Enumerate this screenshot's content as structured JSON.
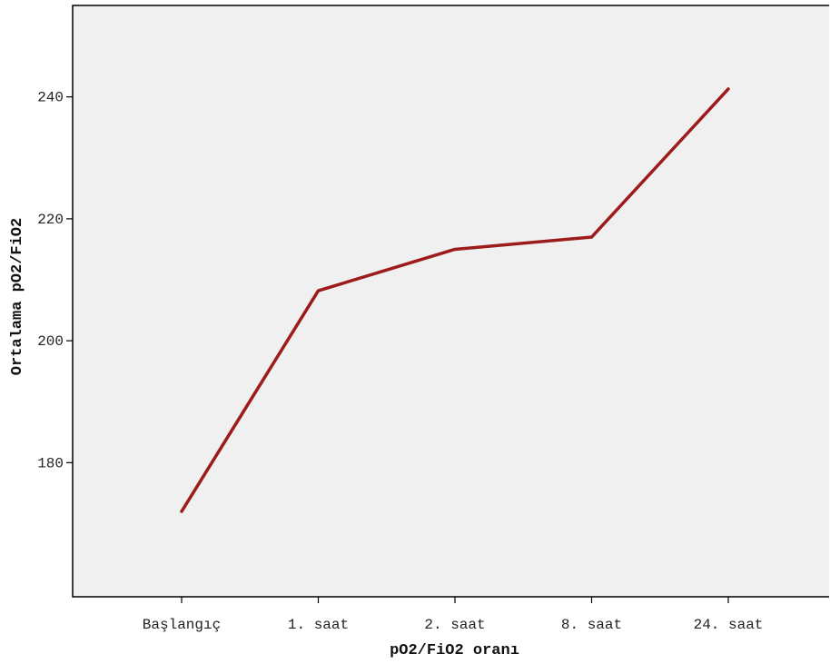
{
  "chart_data": {
    "type": "line",
    "categories": [
      "Başlangıç",
      "1. saat",
      "2. saat",
      "8. saat",
      "24. saat"
    ],
    "series": [
      {
        "values": [
          172,
          208.2,
          215,
          217,
          241.3
        ],
        "color": "#9e1b1b"
      }
    ],
    "xlabel": "pO2/FiO2 oranı",
    "ylabel": "Ortalama pO2/FiO2",
    "ylim": [
      158,
      255
    ],
    "yticks": [
      180,
      200,
      220,
      240
    ],
    "grid": false,
    "legend": "none",
    "plot_background": "#f0f0f0",
    "axis_color": "#000000"
  }
}
